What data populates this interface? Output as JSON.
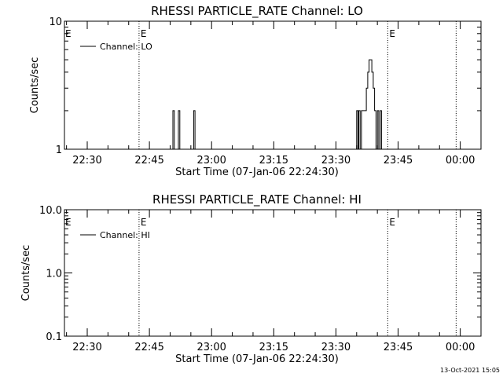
{
  "timestamp": "13-Oct-2021 15:05",
  "chart_data": [
    {
      "type": "line",
      "title": "RHESSI PARTICLE_RATE Channel: LO",
      "xlabel": "Start Time (07-Jan-06 22:24:30)",
      "ylabel": "Counts/sec",
      "y_scale": "log",
      "xlim": [
        "22:24:30",
        "00:05:00"
      ],
      "ylim": [
        1,
        10
      ],
      "x_ticks": [
        "22:30",
        "22:45",
        "23:00",
        "23:15",
        "23:30",
        "23:45",
        "00:00"
      ],
      "y_ticks": [
        "1",
        "10"
      ],
      "legend": {
        "position": "top-left",
        "entries": [
          "Channel: LO"
        ]
      },
      "markers": [
        {
          "label": "E",
          "x": "22:42:30"
        },
        {
          "label": "E",
          "x": "23:42:30"
        },
        {
          "label": "",
          "x": "23:59:00"
        }
      ],
      "series": [
        {
          "name": "Channel: LO",
          "x": [
            "22:24:30",
            "22:50:20",
            "22:50:40",
            "22:51:00",
            "22:51:40",
            "22:52:00",
            "22:52:20",
            "22:55:20",
            "22:55:40",
            "22:56:00",
            "23:34:40",
            "23:35:00",
            "23:35:20",
            "23:35:30",
            "23:35:50",
            "23:36:10",
            "23:36:20",
            "23:37:00",
            "23:37:20",
            "23:37:40",
            "23:38:00",
            "23:38:20",
            "23:38:40",
            "23:39:00",
            "23:39:20",
            "23:39:40",
            "23:40:00",
            "23:40:20",
            "23:40:40",
            "23:41:00",
            "23:41:20",
            "23:41:30",
            "23:41:50",
            "23:42:10",
            "23:42:30",
            "23:42:50",
            "23:43:10",
            "00:05:00"
          ],
          "values": [
            1,
            1,
            2,
            1,
            1,
            2,
            1,
            1,
            2,
            1,
            1,
            2,
            1,
            2,
            1,
            2,
            2,
            2,
            3,
            4,
            5,
            5,
            4,
            3,
            2,
            1,
            2,
            1,
            2,
            1,
            1,
            1,
            1,
            1,
            1,
            1,
            1,
            1
          ]
        }
      ]
    },
    {
      "type": "line",
      "title": "RHESSI PARTICLE_RATE Channel: HI",
      "xlabel": "Start Time (07-Jan-06 22:24:30)",
      "ylabel": "Counts/sec",
      "y_scale": "log",
      "xlim": [
        "22:24:30",
        "00:05:00"
      ],
      "ylim": [
        0.1,
        10
      ],
      "x_ticks": [
        "22:30",
        "22:45",
        "23:00",
        "23:15",
        "23:30",
        "23:45",
        "00:00"
      ],
      "y_ticks": [
        "0.1",
        "1.0",
        "10.0"
      ],
      "legend": {
        "position": "top-left",
        "entries": [
          "Channel: HI"
        ]
      },
      "markers": [
        {
          "label": "E",
          "x": "22:42:30"
        },
        {
          "label": "E",
          "x": "23:42:30"
        },
        {
          "label": "",
          "x": "23:59:00"
        }
      ],
      "series": [
        {
          "name": "Channel: HI",
          "x": [],
          "values": []
        }
      ]
    }
  ]
}
